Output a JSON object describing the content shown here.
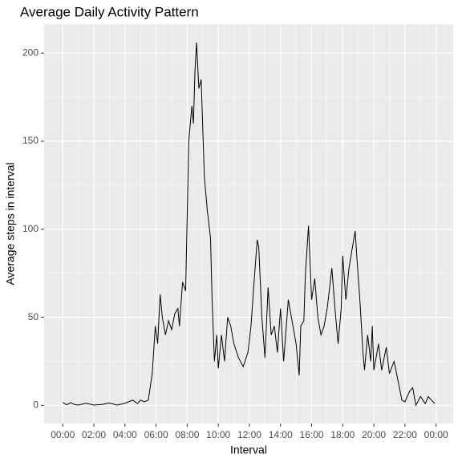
{
  "chart_data": {
    "type": "line",
    "title": "Average Daily Activity Pattern",
    "x_label": "Interval",
    "y_label": "Average steps in interval",
    "x": [
      0,
      0.25,
      0.5,
      0.75,
      1,
      1.5,
      2,
      2.5,
      3,
      3.5,
      4,
      4.5,
      4.8,
      5.0,
      5.25,
      5.5,
      5.75,
      5.95,
      6.1,
      6.26,
      6.4,
      6.6,
      6.8,
      7.0,
      7.2,
      7.4,
      7.5,
      7.7,
      7.9,
      8.1,
      8.3,
      8.4,
      8.5,
      8.6,
      8.75,
      8.9,
      9.1,
      9.3,
      9.5,
      9.6,
      9.75,
      9.9,
      10.0,
      10.2,
      10.4,
      10.6,
      10.8,
      11.0,
      11.3,
      11.6,
      11.9,
      12.0,
      12.1,
      12.3,
      12.5,
      12.6,
      12.8,
      13.0,
      13.2,
      13.4,
      13.6,
      13.8,
      14.0,
      14.2,
      14.5,
      14.8,
      15.0,
      15.2,
      15.3,
      15.5,
      15.6,
      15.8,
      16.0,
      16.2,
      16.4,
      16.6,
      16.8,
      17.0,
      17.3,
      17.5,
      17.7,
      17.9,
      18.0,
      18.2,
      18.4,
      18.8,
      18.9,
      19.1,
      19.3,
      19.4,
      19.6,
      19.8,
      19.9,
      20.0,
      20.3,
      20.5,
      20.8,
      21.0,
      21.3,
      21.6,
      21.8,
      22.0,
      22.3,
      22.5,
      22.7,
      23.0,
      23.3,
      23.5,
      23.7,
      23.92
    ],
    "series": [
      {
        "color": "#000000",
        "values": [
          1.7,
          0.3,
          1.5,
          0.5,
          0.2,
          1.2,
          0.2,
          0.5,
          1.3,
          0.2,
          1.2,
          3,
          1,
          3,
          2,
          3,
          18,
          45,
          35,
          63,
          50,
          40,
          48,
          43,
          52,
          55,
          45,
          70,
          65,
          150,
          170,
          160,
          190,
          206,
          180,
          185,
          130,
          110,
          95,
          60,
          25,
          40,
          21,
          40,
          25,
          50,
          45,
          35,
          27,
          22,
          30,
          37,
          45,
          70,
          94,
          90,
          50,
          27,
          67,
          40,
          45,
          30,
          55,
          25,
          60,
          45,
          35,
          17,
          45,
          48,
          75,
          102,
          60,
          72,
          50,
          40,
          45,
          55,
          78,
          55,
          35,
          55,
          85,
          60,
          78,
          99,
          85,
          60,
          30,
          20,
          40,
          25,
          45,
          20,
          35,
          20,
          33,
          18,
          25,
          12,
          3,
          2,
          8,
          10,
          0,
          5,
          1,
          5,
          3,
          1
        ]
      }
    ],
    "xlim": [
      -1.2,
      25.1
    ],
    "ylim": [
      -10.3,
      216.5
    ],
    "xticks": [
      {
        "value": 0,
        "label": "00:00"
      },
      {
        "value": 2,
        "label": "02:00"
      },
      {
        "value": 4,
        "label": "04:00"
      },
      {
        "value": 6,
        "label": "06:00"
      },
      {
        "value": 8,
        "label": "08:00"
      },
      {
        "value": 10,
        "label": "10:00"
      },
      {
        "value": 12,
        "label": "12:00"
      },
      {
        "value": 14,
        "label": "14:00"
      },
      {
        "value": 16,
        "label": "16:00"
      },
      {
        "value": 18,
        "label": "18:00"
      },
      {
        "value": 20,
        "label": "20:00"
      },
      {
        "value": 22,
        "label": "22:00"
      },
      {
        "value": 24,
        "label": "00:00"
      }
    ],
    "yticks": [
      0,
      50,
      100,
      150,
      200
    ],
    "grid": true
  }
}
